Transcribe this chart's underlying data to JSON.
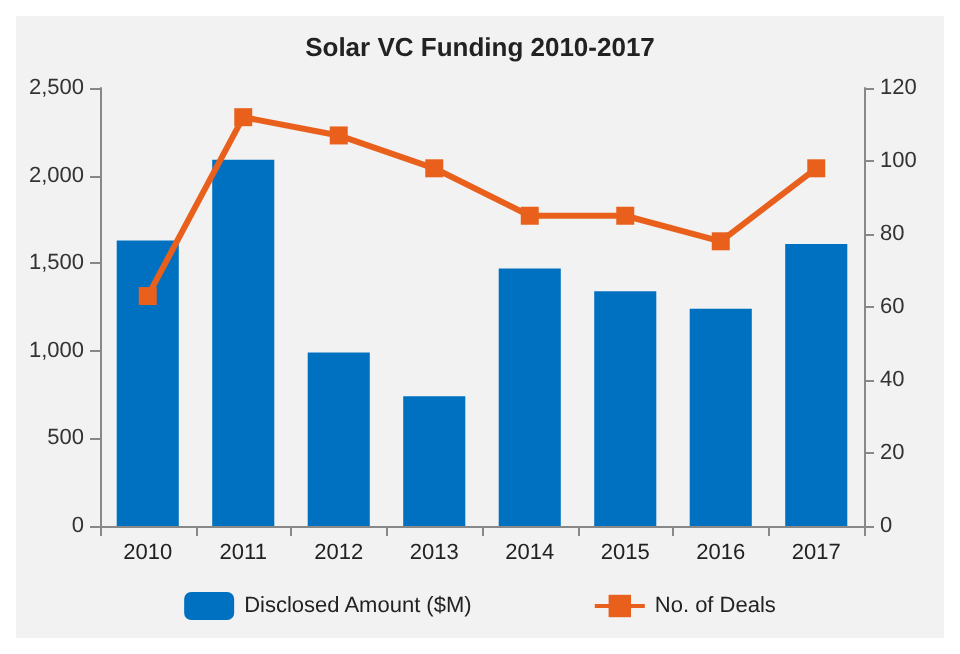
{
  "chart_data": {
    "type": "bar",
    "title": "Solar VC Funding 2010-2017",
    "categories": [
      "2010",
      "2011",
      "2012",
      "2013",
      "2014",
      "2015",
      "2016",
      "2017"
    ],
    "series": [
      {
        "name": "Disclosed Amount ($M)",
        "color": "#0070c0",
        "values": [
          1630,
          2090,
          990,
          740,
          1470,
          1340,
          1240,
          1610
        ]
      },
      {
        "name": "No. of Deals",
        "type": "line",
        "axis": "y2",
        "color": "#e8601c",
        "values": [
          63,
          112,
          107,
          98,
          85,
          85,
          78,
          98
        ]
      }
    ],
    "ylim": [
      0,
      2500
    ],
    "yticks": [
      0,
      500,
      {
        "value": 1000,
        "label": "1,000"
      },
      {
        "value": 1500,
        "label": "1,500"
      },
      {
        "value": 2000,
        "label": "2,000"
      },
      {
        "value": 2500,
        "label": "2,500"
      }
    ],
    "y2lim": [
      0,
      120
    ],
    "y2ticks": [
      0,
      20,
      40,
      60,
      80,
      100,
      120
    ],
    "grid": false,
    "legend": "bottom",
    "marker": "square"
  }
}
